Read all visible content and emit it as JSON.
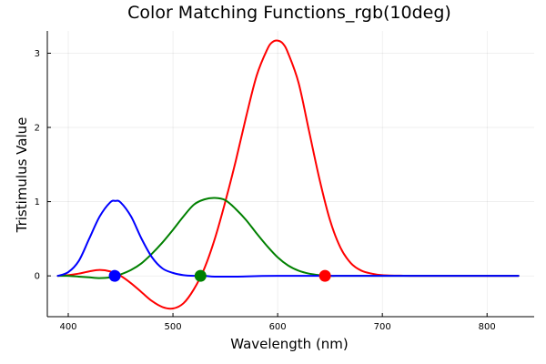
{
  "chart_data": {
    "type": "line",
    "title": "Color Matching Functions_rgb(10deg)",
    "xlabel": "Wavelength (nm)",
    "ylabel": "Tristimulus Value",
    "xlim": [
      380,
      845
    ],
    "ylim": [
      -0.55,
      3.3
    ],
    "xticks": [
      400,
      500,
      600,
      700,
      800
    ],
    "yticks": [
      0,
      1,
      2,
      3
    ],
    "grid": true,
    "legend": "none",
    "series": [
      {
        "color": "#ff0000",
        "x": [
          390,
          400,
          410,
          420,
          430,
          440,
          450,
          460,
          470,
          480,
          490,
          500,
          510,
          520,
          530,
          540,
          550,
          560,
          570,
          580,
          590,
          595,
          600,
          605,
          610,
          620,
          630,
          640,
          650,
          660,
          670,
          680,
          690,
          700,
          720,
          740,
          760,
          780,
          800,
          830
        ],
        "y": [
          0.0,
          0.01,
          0.03,
          0.06,
          0.08,
          0.06,
          0.0,
          -0.1,
          -0.22,
          -0.34,
          -0.42,
          -0.44,
          -0.37,
          -0.18,
          0.1,
          0.5,
          1.0,
          1.55,
          2.15,
          2.7,
          3.05,
          3.15,
          3.17,
          3.13,
          3.0,
          2.6,
          1.95,
          1.3,
          0.75,
          0.38,
          0.17,
          0.07,
          0.03,
          0.01,
          0.002,
          0.0,
          0.0,
          0.0,
          0.0,
          0.0
        ]
      },
      {
        "color": "#008000",
        "x": [
          390,
          400,
          410,
          420,
          430,
          440,
          450,
          460,
          470,
          480,
          490,
          500,
          510,
          520,
          530,
          540,
          550,
          560,
          570,
          580,
          590,
          600,
          610,
          620,
          630,
          640,
          650,
          660,
          680,
          700,
          750,
          830
        ],
        "y": [
          0.0,
          0.0,
          -0.01,
          -0.02,
          -0.03,
          -0.02,
          0.02,
          0.08,
          0.17,
          0.3,
          0.45,
          0.62,
          0.8,
          0.96,
          1.03,
          1.05,
          1.02,
          0.9,
          0.75,
          0.57,
          0.4,
          0.25,
          0.14,
          0.07,
          0.03,
          0.01,
          0.0,
          0.0,
          0.0,
          0.0,
          0.0,
          0.0
        ]
      },
      {
        "color": "#0000ff",
        "x": [
          390,
          400,
          410,
          420,
          430,
          440,
          445,
          450,
          460,
          470,
          480,
          490,
          500,
          510,
          520,
          530,
          540,
          560,
          600,
          700,
          830
        ],
        "y": [
          0.0,
          0.05,
          0.2,
          0.5,
          0.8,
          0.99,
          1.01,
          0.99,
          0.8,
          0.5,
          0.25,
          0.1,
          0.04,
          0.01,
          0.0,
          0.0,
          -0.01,
          -0.01,
          0.0,
          0.0,
          0.0
        ]
      }
    ],
    "markers": [
      {
        "x": 444.4,
        "y": 0,
        "color": "#0000ff"
      },
      {
        "x": 526.3,
        "y": 0,
        "color": "#008000"
      },
      {
        "x": 645.2,
        "y": 0,
        "color": "#ff0000"
      }
    ]
  }
}
